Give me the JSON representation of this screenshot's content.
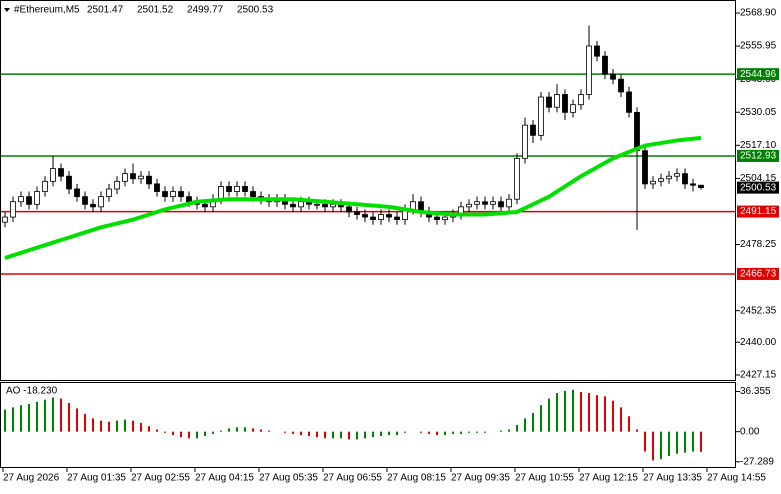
{
  "chart_data": {
    "type": "candlestick",
    "symbol": "#Ethereum,M5",
    "open": [
      2487,
      2489,
      2495,
      2497,
      2494,
      2499,
      2503,
      2508,
      2505,
      2500,
      2497,
      2494,
      2493,
      2497,
      2500,
      2503,
      2506,
      2504,
      2505,
      2502,
      2499,
      2497,
      2499,
      2497,
      2495,
      2494,
      2493,
      2496,
      2501,
      2499,
      2501,
      2499,
      2497,
      2496,
      2495,
      2496,
      2494,
      2493,
      2495,
      2494,
      2494,
      2493,
      2494,
      2493,
      2491,
      2490,
      2489,
      2488,
      2490,
      2489,
      2488,
      2492,
      2495,
      2491,
      2489,
      2488,
      2489,
      2490,
      2493,
      2494,
      2495,
      2494,
      2495,
      2493,
      2496,
      2512,
      2525,
      2521,
      2536,
      2532,
      2537,
      2530,
      2533,
      2537,
      2556,
      2552,
      2545,
      2543,
      2538,
      2530,
      2515,
      2502,
      2503,
      2504,
      2505,
      2506,
      2502,
      2501.47
    ],
    "high": [
      2491,
      2497,
      2499,
      2499,
      2501,
      2505,
      2513,
      2510,
      2507,
      2502,
      2499,
      2496,
      2499,
      2502,
      2505,
      2508,
      2510,
      2507,
      2507,
      2504,
      2501,
      2501,
      2501,
      2499,
      2497,
      2496,
      2498,
      2503,
      2503,
      2503,
      2503,
      2501,
      2499,
      2498,
      2498,
      2498,
      2496,
      2497,
      2497,
      2496,
      2496,
      2496,
      2496,
      2495,
      2493,
      2492,
      2491,
      2492,
      2492,
      2491,
      2494,
      2498,
      2497,
      2493,
      2491,
      2491,
      2492,
      2495,
      2496,
      2497,
      2497,
      2497,
      2497,
      2498,
      2514,
      2528,
      2527,
      2538,
      2538,
      2541,
      2539,
      2535,
      2539,
      2564,
      2558,
      2554,
      2547,
      2545,
      2540,
      2532,
      2517,
      2505,
      2506,
      2507,
      2508,
      2508,
      2504,
      2501.52
    ],
    "low": [
      2485,
      2487,
      2493,
      2492,
      2492,
      2497,
      2501,
      2503,
      2498,
      2495,
      2492,
      2491,
      2491,
      2495,
      2498,
      2501,
      2502,
      2502,
      2500,
      2497,
      2495,
      2495,
      2495,
      2493,
      2492,
      2491,
      2491,
      2494,
      2497,
      2497,
      2497,
      2495,
      2494,
      2493,
      2493,
      2492,
      2491,
      2491,
      2492,
      2492,
      2491,
      2491,
      2491,
      2489,
      2488,
      2487,
      2486,
      2486,
      2487,
      2486,
      2486,
      2490,
      2489,
      2487,
      2486,
      2486,
      2487,
      2488,
      2491,
      2492,
      2492,
      2492,
      2491,
      2491,
      2494,
      2510,
      2518,
      2519,
      2530,
      2530,
      2527,
      2528,
      2531,
      2535,
      2550,
      2543,
      2541,
      2536,
      2528,
      2484,
      2500,
      2500,
      2501,
      2502,
      2503,
      2500,
      2499,
      2499.77
    ],
    "close": [
      2489,
      2495,
      2497,
      2494,
      2499,
      2503,
      2508,
      2505,
      2500,
      2497,
      2494,
      2493,
      2497,
      2500,
      2503,
      2506,
      2504,
      2505,
      2502,
      2499,
      2497,
      2499,
      2497,
      2495,
      2494,
      2493,
      2496,
      2501,
      2499,
      2501,
      2499,
      2497,
      2496,
      2495,
      2496,
      2494,
      2493,
      2495,
      2494,
      2494,
      2493,
      2494,
      2493,
      2491,
      2490,
      2489,
      2488,
      2490,
      2489,
      2488,
      2492,
      2495,
      2491,
      2489,
      2488,
      2489,
      2490,
      2493,
      2494,
      2495,
      2494,
      2495,
      2493,
      2496,
      2512,
      2525,
      2521,
      2536,
      2532,
      2537,
      2530,
      2533,
      2537,
      2556,
      2552,
      2545,
      2543,
      2538,
      2530,
      2515,
      2502,
      2503,
      2504,
      2505,
      2506,
      2502,
      2501.47,
      2500.53
    ],
    "ma": {
      "color": "#00e000",
      "x": [
        0,
        4,
        8,
        12,
        16,
        20,
        24,
        28,
        32,
        36,
        40,
        44,
        48,
        52,
        56,
        60,
        64,
        68,
        72,
        76,
        80,
        84,
        87
      ],
      "values": [
        2473,
        2477,
        2481,
        2485,
        2488,
        2492,
        2495,
        2496,
        2496,
        2496,
        2495,
        2494,
        2493,
        2491,
        2490,
        2490,
        2491,
        2497,
        2505,
        2512,
        2517,
        2519,
        2520
      ]
    },
    "levels": [
      {
        "value": 2544.96,
        "color": "#008000"
      },
      {
        "value": 2512.93,
        "color": "#008000"
      },
      {
        "value": 2491.15,
        "color": "#e00000"
      },
      {
        "value": 2466.73,
        "color": "#e00000"
      }
    ],
    "ylim": [
      2425.2,
      2574.0
    ],
    "yticks": [
      {
        "value": 2568.9,
        "label": "2568.90"
      },
      2555.95,
      {
        "value": 2543,
        "label": "2543.00"
      },
      2530.05,
      {
        "value": 2517.1,
        "label": "2517.10"
      },
      2504.15,
      2478.25,
      2452.35,
      {
        "value": 2440,
        "label": "2440.00"
      },
      2427.15
    ],
    "xticks": [
      {
        "value": 0,
        "label": "27 Aug 2026"
      },
      {
        "value": 8,
        "label": "27 Aug 01:35"
      },
      {
        "value": 16,
        "label": "27 Aug 02:55"
      },
      {
        "value": 24,
        "label": "27 Aug 04:15"
      },
      {
        "value": 32,
        "label": "27 Aug 05:35"
      },
      {
        "value": 40,
        "label": "27 Aug 06:55"
      },
      {
        "value": 48,
        "label": "27 Aug 08:15"
      },
      {
        "value": 56,
        "label": "27 Aug 09:35"
      },
      {
        "value": 64,
        "label": "27 Aug 10:55"
      },
      {
        "value": 72,
        "label": "27 Aug 12:15"
      },
      {
        "value": 80,
        "label": "27 Aug 13:35"
      },
      {
        "value": 88,
        "label": "27 Aug 14:55"
      }
    ],
    "ao": {
      "label": "AO -18.230",
      "up_color": "#008000",
      "down_color": "#e00000",
      "values": [
        20,
        22,
        24,
        25,
        27,
        29,
        31,
        30,
        26,
        21,
        16,
        12,
        10,
        9,
        10,
        11,
        10,
        8,
        5,
        2,
        -1,
        -3,
        -5,
        -6,
        -6,
        -4,
        -2,
        1,
        3,
        4,
        4,
        3,
        2,
        1,
        0,
        -1,
        -2,
        -3,
        -4,
        -5,
        -6,
        -6,
        -6,
        -7,
        -7,
        -6,
        -5,
        -4,
        -3,
        -3,
        -1,
        0,
        -1,
        -2,
        -3,
        -3,
        -2,
        -2,
        -1,
        -1,
        -1,
        0,
        1,
        2,
        6,
        12,
        17,
        24,
        30,
        35,
        37,
        38,
        36,
        35,
        33,
        32,
        28,
        22,
        14,
        2,
        -18,
        -26,
        -25,
        -22,
        -20,
        -19,
        -18,
        -18.23
      ],
      "ylim": [
        -32,
        45
      ],
      "yticks": [
        36.355,
        {
          "value": 0,
          "label": "0.00"
        },
        -27.289
      ]
    }
  }
}
